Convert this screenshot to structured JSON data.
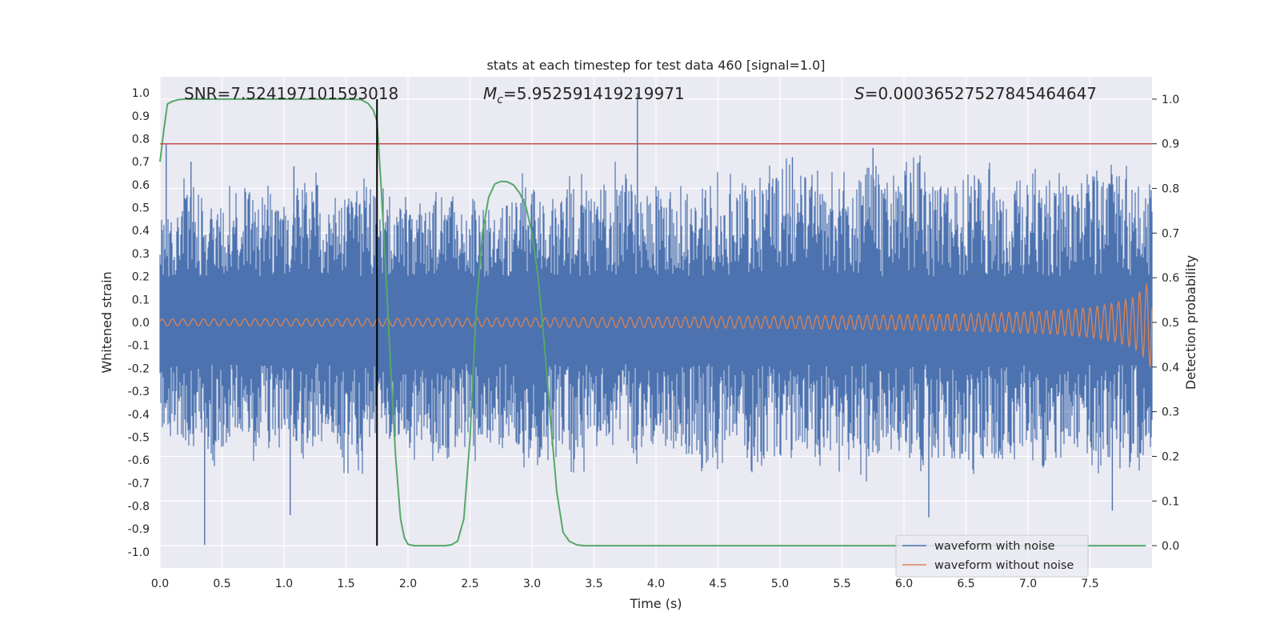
{
  "chart_data": {
    "type": "line",
    "title": "stats at each timestep for test data 460 [signal=1.0]",
    "xlabel": "Time (s)",
    "ylabel": "Whitened strain",
    "y2label": "Detection probability",
    "xlim": [
      0.0,
      8.0
    ],
    "ylim": [
      -1.07,
      1.07
    ],
    "y2lim": [
      -0.05,
      1.05
    ],
    "xticks": [
      "0.0",
      "0.5",
      "1.0",
      "1.5",
      "2.0",
      "2.5",
      "3.0",
      "3.5",
      "4.0",
      "4.5",
      "5.0",
      "5.5",
      "6.0",
      "6.5",
      "7.0",
      "7.5"
    ],
    "yticks": [
      "1.0",
      "0.9",
      "0.8",
      "0.7",
      "0.6",
      "0.5",
      "0.4",
      "0.3",
      "0.2",
      "0.1",
      "0.0",
      "-0.1",
      "-0.2",
      "-0.3",
      "-0.4",
      "-0.5",
      "-0.6",
      "-0.7",
      "-0.8",
      "-0.9",
      "-1.0"
    ],
    "y2ticks": [
      "1.0",
      "0.9",
      "0.8",
      "0.7",
      "0.6",
      "0.5",
      "0.4",
      "0.3",
      "0.2",
      "0.1",
      "0.0"
    ],
    "grid": true,
    "legend_placement": "lower-right",
    "annotations": {
      "snr": "SNR=7.524197101593018",
      "mc_symbol": "M",
      "mc_sub": "c",
      "mc_value": "=5.952591419219971",
      "s_symbol": "S",
      "s_value": "=0.00036527527845464647"
    },
    "threshold_line": {
      "axis": "y2",
      "value": 0.9,
      "color": "#c44e52"
    },
    "marker_line": {
      "x": 1.75,
      "y2_from": 0.0,
      "y2_to": 1.0,
      "color": "#000000"
    },
    "series": [
      {
        "name": "waveform with noise",
        "axis": "y",
        "color": "#4c72b0",
        "envelope_upper": [
          0.45,
          0.6,
          0.5,
          0.6,
          0.55,
          0.5,
          0.6,
          0.5,
          0.55,
          0.6,
          0.5,
          0.5,
          0.55,
          0.5,
          0.45,
          0.55,
          0.6,
          0.5,
          0.6,
          0.55,
          0.65,
          0.6,
          0.6,
          0.55,
          0.6,
          0.65,
          0.6,
          0.7,
          0.6,
          0.65,
          0.6,
          0.65,
          0.6,
          0.7,
          0.6,
          0.6,
          0.65,
          0.6,
          0.65,
          0.6,
          0.6,
          0.65,
          0.65,
          0.6
        ],
        "envelope_lower": [
          -0.5,
          -0.55,
          -0.6,
          -0.5,
          -0.55,
          -0.5,
          -0.55,
          -0.5,
          -0.6,
          -0.5,
          -0.5,
          -0.55,
          -0.6,
          -0.55,
          -0.5,
          -0.55,
          -0.6,
          -0.55,
          -0.6,
          -0.5,
          -0.55,
          -0.6,
          -0.55,
          -0.6,
          -0.6,
          -0.55,
          -0.6,
          -0.6,
          -0.55,
          -0.6,
          -0.6,
          -0.65,
          -0.55,
          -0.6,
          -0.55,
          -0.6,
          -0.65,
          -0.6,
          -0.55,
          -0.6,
          -0.55,
          -0.6,
          -0.6,
          -0.6
        ],
        "peaks": [
          [
            0.36,
            -0.97
          ],
          [
            0.05,
            0.78
          ],
          [
            3.85,
            1.0
          ],
          [
            1.05,
            -0.84
          ],
          [
            6.2,
            -0.85
          ],
          [
            7.68,
            -0.82
          ],
          [
            0.25,
            0.7
          ],
          [
            1.08,
            0.68
          ],
          [
            5.1,
            0.72
          ],
          [
            5.75,
            0.76
          ]
        ]
      },
      {
        "name": "waveform without noise",
        "axis": "y",
        "color": "#dd8452",
        "amplitude_x": [
          0.0,
          1.0,
          2.0,
          3.0,
          4.0,
          5.0,
          6.0,
          6.5,
          7.0,
          7.3,
          7.5,
          7.7,
          7.85,
          7.95,
          8.0
        ],
        "amplitude_y": [
          0.015,
          0.016,
          0.018,
          0.02,
          0.023,
          0.027,
          0.033,
          0.038,
          0.046,
          0.055,
          0.065,
          0.085,
          0.11,
          0.16,
          0.21
        ]
      },
      {
        "name": "Detection probability",
        "axis": "y2",
        "color": "#55a868",
        "x": [
          0.0,
          0.03,
          0.06,
          0.1,
          0.15,
          0.2,
          0.3,
          0.5,
          1.0,
          1.5,
          1.62,
          1.68,
          1.72,
          1.75,
          1.78,
          1.82,
          1.86,
          1.9,
          1.94,
          1.97,
          2.0,
          2.05,
          2.1,
          2.2,
          2.3,
          2.35,
          2.4,
          2.45,
          2.5,
          2.55,
          2.6,
          2.65,
          2.7,
          2.75,
          2.8,
          2.85,
          2.9,
          2.95,
          3.0,
          3.05,
          3.1,
          3.15,
          3.2,
          3.25,
          3.3,
          3.36,
          3.42,
          3.5,
          4.0,
          5.0,
          6.0,
          7.0,
          7.5,
          7.95
        ],
        "y": [
          0.86,
          0.93,
          0.989,
          0.995,
          0.999,
          1.0,
          1.0,
          1.0,
          1.0,
          1.0,
          0.999,
          0.99,
          0.975,
          0.95,
          0.82,
          0.62,
          0.4,
          0.2,
          0.06,
          0.018,
          0.003,
          0.0,
          0.0,
          0.0,
          0.0,
          0.002,
          0.01,
          0.06,
          0.24,
          0.53,
          0.7,
          0.78,
          0.81,
          0.816,
          0.815,
          0.808,
          0.79,
          0.76,
          0.7,
          0.6,
          0.45,
          0.28,
          0.12,
          0.03,
          0.01,
          0.002,
          0.0,
          0.0,
          0.0,
          0.0,
          0.0,
          0.0,
          0.0,
          0.0
        ]
      }
    ]
  }
}
